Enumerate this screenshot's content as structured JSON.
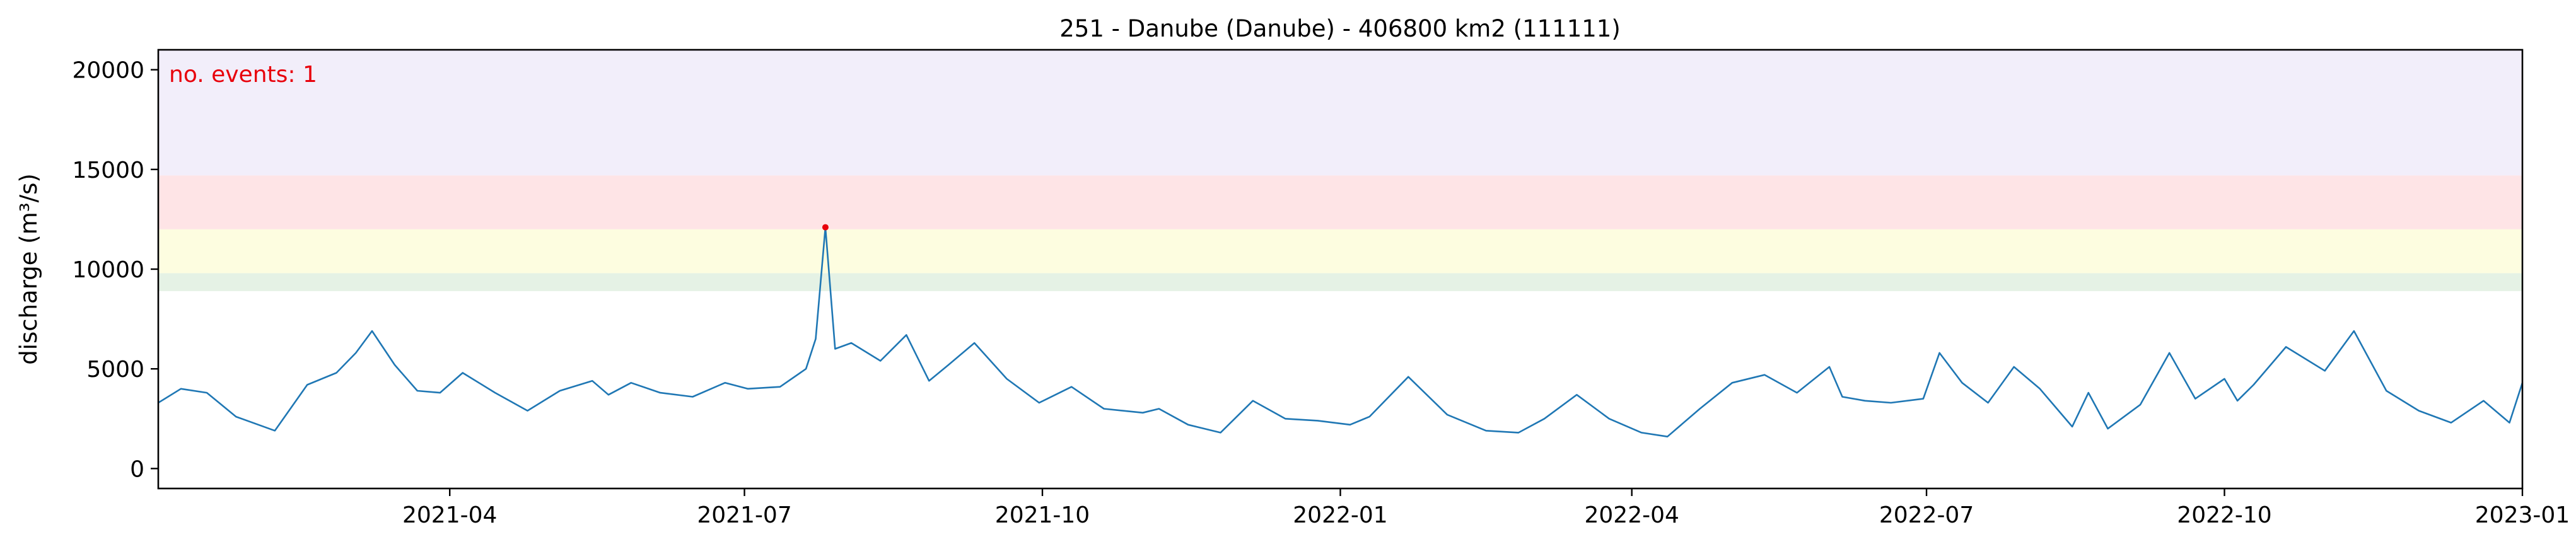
{
  "chart_data": {
    "type": "line",
    "title": "251 - Danube (Danube) - 406800 km2 (111111)",
    "xlabel": "",
    "ylabel": "discharge (m³/s)",
    "annotation": "no. events: 1",
    "xlim": [
      "2021-01-01",
      "2023-01-01"
    ],
    "ylim": [
      -1000,
      21000
    ],
    "x_ticks": [
      {
        "date": "2021-04-01",
        "label": "2021-04"
      },
      {
        "date": "2021-07-01",
        "label": "2021-07"
      },
      {
        "date": "2021-10-01",
        "label": "2021-10"
      },
      {
        "date": "2022-01-01",
        "label": "2022-01"
      },
      {
        "date": "2022-04-01",
        "label": "2022-04"
      },
      {
        "date": "2022-07-01",
        "label": "2022-07"
      },
      {
        "date": "2022-10-01",
        "label": "2022-10"
      },
      {
        "date": "2023-01-01",
        "label": "2023-01"
      }
    ],
    "y_ticks": [
      0,
      5000,
      10000,
      15000,
      20000
    ],
    "y_tick_labels": [
      "0",
      "5000",
      "10000",
      "15000",
      "20000"
    ],
    "grid": false,
    "threshold_bands": [
      {
        "from": 8900,
        "to": 9800,
        "color": "#e5f2e5"
      },
      {
        "from": 9800,
        "to": 12000,
        "color": "#fdfde0"
      },
      {
        "from": 12000,
        "to": 14700,
        "color": "#fee4e6"
      },
      {
        "from": 14700,
        "to": 21000,
        "color": "#f2eefa"
      }
    ],
    "events": [
      {
        "x": "2021-07-26",
        "y": 12100
      }
    ],
    "series": [
      {
        "color": "#1f77b4",
        "x": [
          "2021-01-01",
          "2021-01-08",
          "2021-01-16",
          "2021-01-25",
          "2021-02-06",
          "2021-02-16",
          "2021-02-25",
          "2021-03-03",
          "2021-03-08",
          "2021-03-15",
          "2021-03-22",
          "2021-03-29",
          "2021-04-05",
          "2021-04-15",
          "2021-04-25",
          "2021-05-05",
          "2021-05-15",
          "2021-05-20",
          "2021-05-27",
          "2021-06-05",
          "2021-06-15",
          "2021-06-25",
          "2021-07-02",
          "2021-07-12",
          "2021-07-20",
          "2021-07-23",
          "2021-07-26",
          "2021-07-29",
          "2021-08-03",
          "2021-08-12",
          "2021-08-20",
          "2021-08-27",
          "2021-09-02",
          "2021-09-10",
          "2021-09-20",
          "2021-09-30",
          "2021-10-10",
          "2021-10-20",
          "2021-11-01",
          "2021-11-06",
          "2021-11-15",
          "2021-11-25",
          "2021-12-05",
          "2021-12-15",
          "2021-12-25",
          "2022-01-04",
          "2022-01-10",
          "2022-01-22",
          "2022-02-03",
          "2022-02-15",
          "2022-02-25",
          "2022-03-05",
          "2022-03-15",
          "2022-03-25",
          "2022-04-04",
          "2022-04-12",
          "2022-04-22",
          "2022-05-02",
          "2022-05-12",
          "2022-05-22",
          "2022-06-01",
          "2022-06-05",
          "2022-06-12",
          "2022-06-20",
          "2022-06-30",
          "2022-07-05",
          "2022-07-12",
          "2022-07-20",
          "2022-07-28",
          "2022-08-05",
          "2022-08-15",
          "2022-08-20",
          "2022-08-26",
          "2022-09-05",
          "2022-09-14",
          "2022-09-22",
          "2022-10-01",
          "2022-10-05",
          "2022-10-10",
          "2022-10-20",
          "2022-11-01",
          "2022-11-10",
          "2022-11-20",
          "2022-11-30",
          "2022-12-10",
          "2022-12-20",
          "2022-12-28",
          "2023-01-01"
        ],
        "values": [
          3300,
          4000,
          3800,
          2600,
          1900,
          4200,
          4800,
          5800,
          6900,
          5200,
          3900,
          3800,
          4800,
          3800,
          2900,
          3900,
          4400,
          3700,
          4300,
          3800,
          3600,
          4300,
          4000,
          4100,
          5000,
          6500,
          12100,
          6000,
          6300,
          5400,
          6700,
          4400,
          5200,
          6300,
          4500,
          3300,
          4100,
          3000,
          2800,
          3000,
          2200,
          1800,
          3400,
          2500,
          2400,
          2200,
          2600,
          4600,
          2700,
          1900,
          1800,
          2500,
          3700,
          2500,
          1800,
          1600,
          3000,
          4300,
          4700,
          3800,
          5100,
          3600,
          3400,
          3300,
          3500,
          5800,
          4300,
          3300,
          5100,
          4000,
          2100,
          3800,
          2000,
          3200,
          5800,
          3500,
          4500,
          3400,
          4200,
          6100,
          4900,
          6900,
          3900,
          2900,
          2300,
          3400,
          2300,
          4300
        ]
      }
    ]
  }
}
